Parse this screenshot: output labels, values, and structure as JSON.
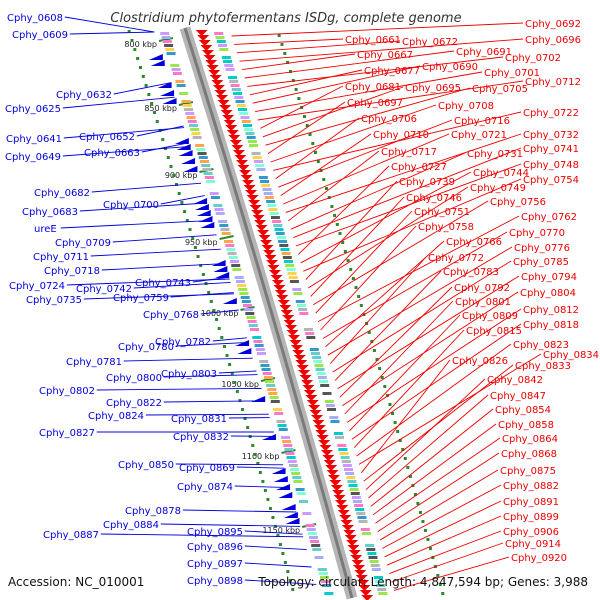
{
  "title": "Clostridium phytofermentans ISDg, complete genome",
  "footer": {
    "accession": "Accession: NC_010001",
    "summary": "Topology: circular; Length: 4,847,594 bp; Genes: 3,988"
  },
  "colors": {
    "reverse_strand": "#0000dd",
    "forward_strand": "#ee0000",
    "backbone": "#8c8c8c",
    "tick": "#2a8a2a"
  },
  "ticks": [
    "800 kbp",
    "850 kbp",
    "900 kbp",
    "950 kbp",
    "1000 kbp",
    "1050 kbp",
    "1100 kbp",
    "1150 kbp"
  ],
  "reverse_strand_labels": [
    "Cphy_0608",
    "Cphy_0609",
    "Cphy_0632",
    "Cphy_0625",
    "Cphy_0641",
    "Cphy_0652",
    "Cphy_0649",
    "Cphy_0663",
    "Cphy_0682",
    "Cphy_0700",
    "Cphy_0683",
    "ureE",
    "Cphy_0709",
    "Cphy_0711",
    "Cphy_0718",
    "Cphy_0724",
    "Cphy_0742",
    "Cphy_0735",
    "Cphy_0743",
    "Cphy_0759",
    "Cphy_0768",
    "Cphy_0780",
    "Cphy_0782",
    "Cphy_0781",
    "Cphy_0800",
    "Cphy_0803",
    "Cphy_0802",
    "Cphy_0822",
    "Cphy_0824",
    "Cphy_0831",
    "Cphy_0827",
    "Cphy_0832",
    "Cphy_0850",
    "Cphy_0869",
    "Cphy_0874",
    "Cphy_0878",
    "Cphy_0884",
    "Cphy_0887",
    "Cphy_0895",
    "Cphy_0896",
    "Cphy_0897",
    "Cphy_0898"
  ],
  "forward_strand_labels": [
    "Cphy_0692",
    "Cphy_0661",
    "Cphy_0672",
    "Cphy_0696",
    "Cphy_0667",
    "Cphy_0691",
    "Cphy_0702",
    "Cphy_0677",
    "Cphy_0690",
    "Cphy_0701",
    "Cphy_0712",
    "Cphy_0681",
    "Cphy_0695",
    "Cphy_0705",
    "Cphy_0697",
    "Cphy_0708",
    "Cphy_0722",
    "Cphy_0706",
    "Cphy_0716",
    "Cphy_0710",
    "Cphy_0721",
    "Cphy_0732",
    "Cphy_0717",
    "Cphy_0731",
    "Cphy_0741",
    "Cphy_0748",
    "Cphy_0727",
    "Cphy_0744",
    "Cphy_0754",
    "Cphy_0739",
    "Cphy_0749",
    "Cphy_0746",
    "Cphy_0756",
    "Cphy_0751",
    "Cphy_0762",
    "Cphy_0758",
    "Cphy_0770",
    "Cphy_0766",
    "Cphy_0776",
    "Cphy_0772",
    "Cphy_0785",
    "Cphy_0783",
    "Cphy_0794",
    "Cphy_0792",
    "Cphy_0804",
    "Cphy_0801",
    "Cphy_0812",
    "Cphy_0809",
    "Cphy_0818",
    "Cphy_0815",
    "Cphy_0823",
    "Cphy_0834",
    "Cphy_0826",
    "Cphy_0833",
    "Cphy_0842",
    "Cphy_0847",
    "Cphy_0854",
    "Cphy_0858",
    "Cphy_0864",
    "Cphy_0868",
    "Cphy_0875",
    "Cphy_0882",
    "Cphy_0891",
    "Cphy_0899",
    "Cphy_0906",
    "Cphy_0914",
    "Cphy_0920"
  ]
}
